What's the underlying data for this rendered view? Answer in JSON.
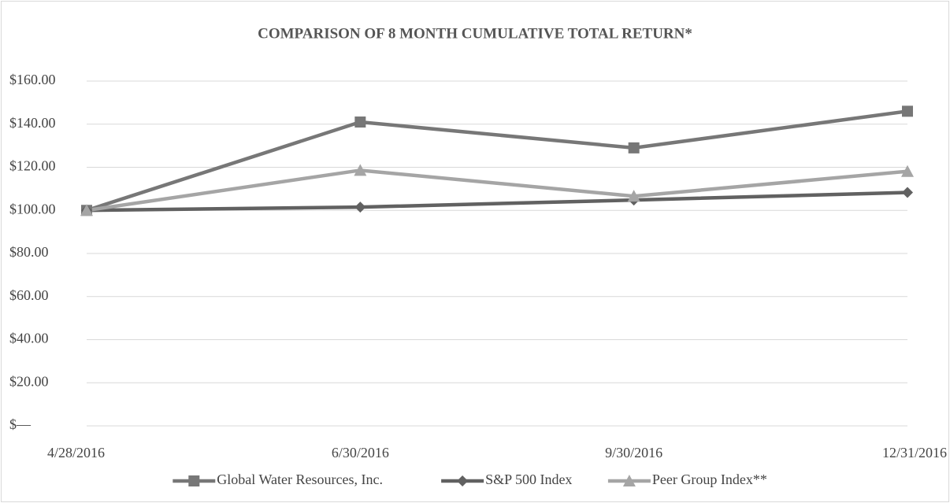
{
  "chart_data": {
    "type": "line",
    "title": "COMPARISON OF 8 MONTH CUMULATIVE TOTAL RETURN*",
    "categories": [
      "4/28/2016",
      "6/30/2016",
      "9/30/2016",
      "12/31/2016"
    ],
    "series": [
      {
        "name": "Global Water Resources, Inc.",
        "color": "#777777",
        "marker": "square",
        "values": [
          100,
          141,
          129,
          146
        ]
      },
      {
        "name": "S&P 500 Index",
        "color": "#616161",
        "marker": "diamond",
        "values": [
          100,
          101.5,
          104.8,
          108.3
        ]
      },
      {
        "name": "Peer Group Index**",
        "color": "#a5a5a5",
        "marker": "triangle",
        "values": [
          100,
          118.6,
          106.6,
          118.1
        ]
      }
    ],
    "ylim": [
      0,
      160
    ],
    "yticks": [
      {
        "value": 0,
        "label": "$—"
      },
      {
        "value": 20,
        "label": "$20.00"
      },
      {
        "value": 40,
        "label": "$40.00"
      },
      {
        "value": 60,
        "label": "$60.00"
      },
      {
        "value": 80,
        "label": "$80.00"
      },
      {
        "value": 100,
        "label": "$100.00"
      },
      {
        "value": 120,
        "label": "$120.00"
      },
      {
        "value": 140,
        "label": "$140.00"
      },
      {
        "value": 160,
        "label": "$160.00"
      }
    ],
    "grid": true,
    "legend": "bottom"
  }
}
